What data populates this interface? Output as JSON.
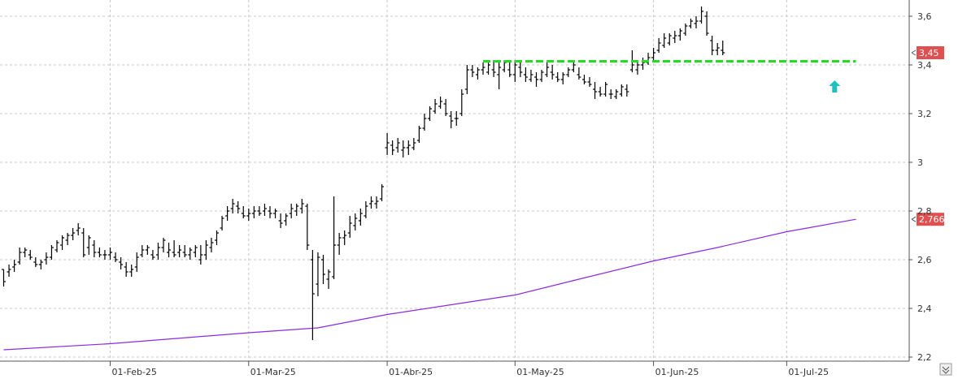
{
  "chart_data": {
    "type": "ohlc",
    "title": "",
    "xlabel": "",
    "ylabel": "",
    "ylim": [
      2.2,
      3.66
    ],
    "y_ticks": [
      {
        "value": 2.2,
        "label": "2,2"
      },
      {
        "value": 2.4,
        "label": "2,4"
      },
      {
        "value": 2.6,
        "label": "2,6"
      },
      {
        "value": 2.8,
        "label": "2,8"
      },
      {
        "value": 3.0,
        "label": "3"
      },
      {
        "value": 3.2,
        "label": "3,2"
      },
      {
        "value": 3.4,
        "label": "3,4"
      },
      {
        "value": 3.6,
        "label": "3,6"
      }
    ],
    "x_ticks": [
      {
        "index": 20,
        "label": "01-Feb-25"
      },
      {
        "index": 46,
        "label": "01-Mar-25"
      },
      {
        "index": 72,
        "label": "01-Abr-25"
      },
      {
        "index": 96,
        "label": "01-May-25"
      },
      {
        "index": 122,
        "label": "01-Jun-25"
      },
      {
        "index": 147,
        "label": "01-Jul-25"
      }
    ],
    "grid": true,
    "bars": [
      [
        2.56,
        2.56,
        2.49,
        2.51
      ],
      [
        2.55,
        2.58,
        2.53,
        2.56
      ],
      [
        2.57,
        2.6,
        2.55,
        2.58
      ],
      [
        2.59,
        2.65,
        2.58,
        2.63
      ],
      [
        2.63,
        2.65,
        2.61,
        2.64
      ],
      [
        2.62,
        2.64,
        2.6,
        2.61
      ],
      [
        2.59,
        2.61,
        2.57,
        2.58
      ],
      [
        2.58,
        2.6,
        2.56,
        2.59
      ],
      [
        2.6,
        2.63,
        2.58,
        2.61
      ],
      [
        2.61,
        2.66,
        2.6,
        2.65
      ],
      [
        2.64,
        2.68,
        2.63,
        2.67
      ],
      [
        2.66,
        2.7,
        2.64,
        2.69
      ],
      [
        2.68,
        2.71,
        2.66,
        2.7
      ],
      [
        2.7,
        2.73,
        2.68,
        2.71
      ],
      [
        2.72,
        2.75,
        2.7,
        2.73
      ],
      [
        2.71,
        2.73,
        2.61,
        2.62
      ],
      [
        2.65,
        2.7,
        2.62,
        2.69
      ],
      [
        2.66,
        2.68,
        2.61,
        2.63
      ],
      [
        2.63,
        2.65,
        2.61,
        2.62
      ],
      [
        2.62,
        2.64,
        2.6,
        2.62
      ],
      [
        2.62,
        2.65,
        2.6,
        2.63
      ],
      [
        2.61,
        2.63,
        2.59,
        2.6
      ],
      [
        2.59,
        2.61,
        2.56,
        2.58
      ],
      [
        2.57,
        2.59,
        2.53,
        2.55
      ],
      [
        2.55,
        2.58,
        2.53,
        2.56
      ],
      [
        2.57,
        2.63,
        2.55,
        2.61
      ],
      [
        2.62,
        2.66,
        2.61,
        2.64
      ],
      [
        2.64,
        2.66,
        2.62,
        2.65
      ],
      [
        2.62,
        2.64,
        2.6,
        2.61
      ],
      [
        2.62,
        2.67,
        2.6,
        2.65
      ],
      [
        2.65,
        2.69,
        2.63,
        2.68
      ],
      [
        2.63,
        2.67,
        2.61,
        2.64
      ],
      [
        2.63,
        2.68,
        2.61,
        2.62
      ],
      [
        2.63,
        2.66,
        2.61,
        2.64
      ],
      [
        2.63,
        2.66,
        2.61,
        2.62
      ],
      [
        2.62,
        2.65,
        2.6,
        2.64
      ],
      [
        2.63,
        2.66,
        2.61,
        2.65
      ],
      [
        2.6,
        2.66,
        2.58,
        2.62
      ],
      [
        2.62,
        2.68,
        2.6,
        2.66
      ],
      [
        2.65,
        2.69,
        2.63,
        2.67
      ],
      [
        2.68,
        2.72,
        2.66,
        2.71
      ],
      [
        2.73,
        2.78,
        2.72,
        2.77
      ],
      [
        2.78,
        2.82,
        2.76,
        2.8
      ],
      [
        2.81,
        2.85,
        2.79,
        2.83
      ],
      [
        2.82,
        2.84,
        2.79,
        2.81
      ],
      [
        2.79,
        2.82,
        2.77,
        2.78
      ],
      [
        2.78,
        2.81,
        2.76,
        2.79
      ],
      [
        2.79,
        2.82,
        2.77,
        2.8
      ],
      [
        2.8,
        2.82,
        2.78,
        2.79
      ],
      [
        2.8,
        2.83,
        2.78,
        2.81
      ],
      [
        2.8,
        2.82,
        2.77,
        2.79
      ],
      [
        2.79,
        2.81,
        2.77,
        2.8
      ],
      [
        2.76,
        2.79,
        2.73,
        2.75
      ],
      [
        2.76,
        2.79,
        2.74,
        2.78
      ],
      [
        2.79,
        2.83,
        2.77,
        2.81
      ],
      [
        2.8,
        2.83,
        2.78,
        2.82
      ],
      [
        2.81,
        2.85,
        2.79,
        2.83
      ],
      [
        2.82,
        2.83,
        2.64,
        2.66
      ],
      [
        2.6,
        2.64,
        2.27,
        2.46
      ],
      [
        2.5,
        2.63,
        2.45,
        2.61
      ],
      [
        2.6,
        2.62,
        2.5,
        2.54
      ],
      [
        2.52,
        2.56,
        2.48,
        2.55
      ],
      [
        2.53,
        2.86,
        2.52,
        2.66
      ],
      [
        2.66,
        2.71,
        2.62,
        2.69
      ],
      [
        2.69,
        2.72,
        2.66,
        2.7
      ],
      [
        2.71,
        2.78,
        2.69,
        2.75
      ],
      [
        2.74,
        2.79,
        2.72,
        2.77
      ],
      [
        2.76,
        2.81,
        2.74,
        2.79
      ],
      [
        2.78,
        2.84,
        2.77,
        2.82
      ],
      [
        2.83,
        2.86,
        2.81,
        2.84
      ],
      [
        2.83,
        2.86,
        2.81,
        2.84
      ],
      [
        2.85,
        2.91,
        2.84,
        2.9
      ],
      [
        3.06,
        3.12,
        3.03,
        3.08
      ],
      [
        3.07,
        3.09,
        3.03,
        3.05
      ],
      [
        3.06,
        3.1,
        3.04,
        3.08
      ],
      [
        3.05,
        3.09,
        3.02,
        3.06
      ],
      [
        3.06,
        3.09,
        3.03,
        3.07
      ],
      [
        3.06,
        3.1,
        3.05,
        3.08
      ],
      [
        3.09,
        3.15,
        3.08,
        3.14
      ],
      [
        3.14,
        3.2,
        3.13,
        3.18
      ],
      [
        3.18,
        3.23,
        3.17,
        3.22
      ],
      [
        3.21,
        3.26,
        3.2,
        3.24
      ],
      [
        3.23,
        3.27,
        3.22,
        3.25
      ],
      [
        3.24,
        3.26,
        3.19,
        3.2
      ],
      [
        3.19,
        3.21,
        3.14,
        3.17
      ],
      [
        3.18,
        3.21,
        3.15,
        3.18
      ],
      [
        3.2,
        3.3,
        3.19,
        3.28
      ],
      [
        3.3,
        3.4,
        3.28,
        3.38
      ],
      [
        3.38,
        3.4,
        3.35,
        3.37
      ],
      [
        3.36,
        3.39,
        3.34,
        3.38
      ],
      [
        3.38,
        3.41,
        3.36,
        3.39
      ],
      [
        3.37,
        3.42,
        3.36,
        3.4
      ],
      [
        3.38,
        3.42,
        3.35,
        3.37
      ],
      [
        3.36,
        3.41,
        3.3,
        3.39
      ],
      [
        3.38,
        3.42,
        3.37,
        3.41
      ],
      [
        3.38,
        3.41,
        3.35,
        3.36
      ],
      [
        3.36,
        3.42,
        3.33,
        3.4
      ],
      [
        3.39,
        3.42,
        3.35,
        3.37
      ],
      [
        3.36,
        3.39,
        3.33,
        3.35
      ],
      [
        3.34,
        3.38,
        3.33,
        3.36
      ],
      [
        3.35,
        3.37,
        3.31,
        3.34
      ],
      [
        3.34,
        3.38,
        3.33,
        3.37
      ],
      [
        3.36,
        3.41,
        3.35,
        3.39
      ],
      [
        3.37,
        3.4,
        3.34,
        3.36
      ],
      [
        3.35,
        3.37,
        3.33,
        3.34
      ],
      [
        3.34,
        3.37,
        3.32,
        3.36
      ],
      [
        3.36,
        3.39,
        3.35,
        3.38
      ],
      [
        3.38,
        3.41,
        3.37,
        3.4
      ],
      [
        3.36,
        3.39,
        3.34,
        3.35
      ],
      [
        3.34,
        3.36,
        3.32,
        3.33
      ],
      [
        3.33,
        3.35,
        3.31,
        3.32
      ],
      [
        3.3,
        3.33,
        3.26,
        3.29
      ],
      [
        3.29,
        3.31,
        3.27,
        3.28
      ],
      [
        3.28,
        3.33,
        3.27,
        3.32
      ],
      [
        3.28,
        3.3,
        3.26,
        3.28
      ],
      [
        3.27,
        3.3,
        3.26,
        3.29
      ],
      [
        3.28,
        3.32,
        3.27,
        3.31
      ],
      [
        3.3,
        3.32,
        3.27,
        3.29
      ],
      [
        3.38,
        3.46,
        3.37,
        3.4
      ],
      [
        3.38,
        3.42,
        3.36,
        3.4
      ],
      [
        3.4,
        3.43,
        3.38,
        3.41
      ],
      [
        3.41,
        3.45,
        3.4,
        3.43
      ],
      [
        3.43,
        3.47,
        3.42,
        3.45
      ],
      [
        3.46,
        3.51,
        3.45,
        3.49
      ],
      [
        3.48,
        3.53,
        3.47,
        3.51
      ],
      [
        3.49,
        3.53,
        3.48,
        3.52
      ],
      [
        3.51,
        3.54,
        3.49,
        3.52
      ],
      [
        3.52,
        3.55,
        3.5,
        3.54
      ],
      [
        3.53,
        3.57,
        3.52,
        3.56
      ],
      [
        3.56,
        3.59,
        3.55,
        3.58
      ],
      [
        3.57,
        3.6,
        3.55,
        3.58
      ],
      [
        3.58,
        3.64,
        3.57,
        3.62
      ],
      [
        3.6,
        3.62,
        3.52,
        3.53
      ],
      [
        3.5,
        3.52,
        3.44,
        3.46
      ],
      [
        3.46,
        3.49,
        3.44,
        3.47
      ],
      [
        3.46,
        3.5,
        3.44,
        3.45
      ]
    ],
    "moving_average": {
      "color": "#8a2be2",
      "points": [
        [
          0,
          2.23
        ],
        [
          20,
          2.255
        ],
        [
          46,
          2.3
        ],
        [
          59,
          2.32
        ],
        [
          72,
          2.375
        ],
        [
          84,
          2.415
        ],
        [
          96,
          2.455
        ],
        [
          108,
          2.52
        ],
        [
          122,
          2.595
        ],
        [
          134,
          2.65
        ],
        [
          147,
          2.715
        ],
        [
          160,
          2.766
        ]
      ]
    },
    "support_line": {
      "color": "#22dd22",
      "value": 3.415,
      "from_index": 90,
      "to_index": 160
    },
    "signal_arrow": {
      "color": "#20c0c0",
      "index": 156,
      "value": 3.31
    },
    "price_tags": [
      {
        "label": "3,45",
        "value": 3.45,
        "color": "#e05050"
      },
      {
        "label": "2,766",
        "value": 2.766,
        "color": "#e05050"
      }
    ]
  },
  "corner_icon": "double-chevron-icon"
}
